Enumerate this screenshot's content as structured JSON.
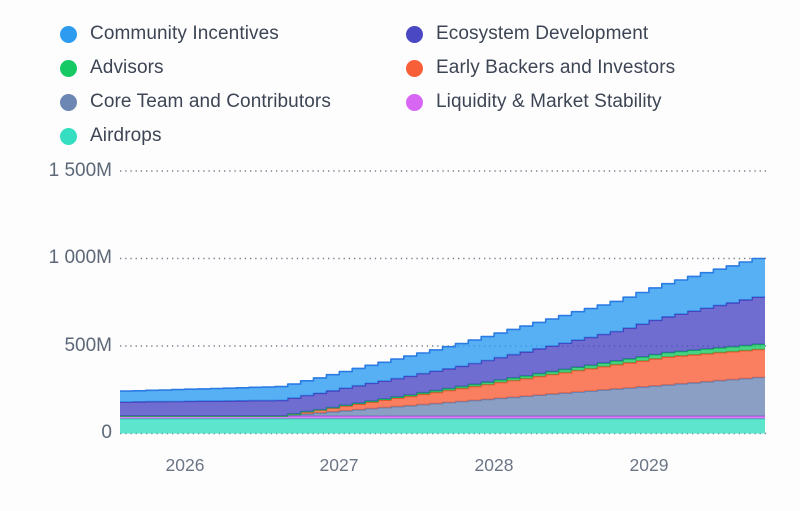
{
  "legend": {
    "items": [
      {
        "label": "Community Incentives",
        "color": "#2D9CF0"
      },
      {
        "label": "Advisors",
        "color": "#17C964"
      },
      {
        "label": "Core Team and Contributors",
        "color": "#6D87B4"
      },
      {
        "label": "Airdrops",
        "color": "#35DEC1"
      },
      {
        "label": "Ecosystem Development",
        "color": "#4B48C4"
      },
      {
        "label": "Early Backers and Investors",
        "color": "#F75F38"
      },
      {
        "label": "Liquidity & Market Stability",
        "color": "#D767F3"
      }
    ]
  },
  "axes": {
    "y_tick_labels": [
      "1 500M",
      "1 000M",
      "500M",
      "0"
    ],
    "x_tick_labels": [
      "2026",
      "2027",
      "2028",
      "2029"
    ]
  },
  "chart_data": {
    "type": "area",
    "stacked": true,
    "stepped": true,
    "title": "",
    "unit": "millions of tokens",
    "ylabel": "",
    "xlabel": "",
    "ylim": [
      0,
      1500
    ],
    "y_tick_values": [
      0,
      500,
      1000,
      1500
    ],
    "y_tick_labels": [
      "0",
      "500M",
      "1 000M",
      "1 500M"
    ],
    "x_tick_labels": [
      "2026",
      "2027",
      "2028",
      "2029"
    ],
    "x_tick_point_index": [
      5,
      17,
      29,
      41
    ],
    "x_start_month": "2025-08",
    "x_months_per_point": 1,
    "points": 50,
    "grid": "dotted-horizontal",
    "legend_position": "top-left-two-columns",
    "series": [
      {
        "name": "Airdrops",
        "color": "#35DEC1",
        "line_color": "#2AC0A9",
        "values": [
          85,
          85,
          85,
          85,
          85,
          85,
          85,
          85,
          85,
          85,
          85,
          85,
          85,
          85,
          85,
          85,
          85,
          85,
          85,
          85,
          85,
          85,
          85,
          85,
          85,
          85,
          85,
          85,
          85,
          85,
          85,
          85,
          85,
          85,
          85,
          85,
          85,
          85,
          85,
          85,
          85,
          85,
          85,
          85,
          85,
          85,
          85,
          85,
          85,
          85
        ]
      },
      {
        "name": "Liquidity & Market Stability",
        "color": "#D767F3",
        "line_color": "#BC53E6",
        "values": [
          15,
          15,
          15,
          15,
          15,
          15,
          15,
          15,
          15,
          15,
          15,
          15,
          15,
          15,
          15,
          15,
          15,
          15,
          15,
          15,
          15,
          15,
          15,
          15,
          15,
          15,
          15,
          15,
          15,
          15,
          15,
          15,
          15,
          15,
          15,
          15,
          15,
          15,
          15,
          15,
          15,
          15,
          15,
          15,
          15,
          15,
          15,
          15,
          15,
          15
        ]
      },
      {
        "name": "Core Team and Contributors",
        "color": "#6D87B4",
        "line_color": "#5F7DB0",
        "values": [
          0,
          0,
          0,
          0,
          0,
          0,
          0,
          0,
          0,
          0,
          0,
          0,
          0,
          6,
          12,
          18,
          24,
          30,
          36,
          42,
          48,
          54,
          59,
          65,
          71,
          77,
          83,
          89,
          95,
          101,
          107,
          113,
          119,
          125,
          131,
          137,
          143,
          149,
          155,
          160,
          166,
          172,
          178,
          184,
          190,
          196,
          202,
          208,
          214,
          220
        ]
      },
      {
        "name": "Early Backers and Investors",
        "color": "#F75F38",
        "line_color": "#EF4A22",
        "values": [
          0,
          0,
          0,
          0,
          0,
          0,
          0,
          0,
          0,
          0,
          0,
          0,
          0,
          5,
          11,
          16,
          21,
          27,
          32,
          37,
          43,
          48,
          53,
          59,
          64,
          69,
          75,
          80,
          85,
          91,
          96,
          101,
          107,
          112,
          117,
          123,
          128,
          133,
          139,
          144,
          149,
          155,
          160,
          160,
          160,
          160,
          160,
          160,
          160,
          160
        ]
      },
      {
        "name": "Advisors",
        "color": "#17C964",
        "line_color": "#0FAD53",
        "values": [
          0,
          0,
          0,
          0,
          0,
          0,
          0,
          0,
          0,
          0,
          0,
          0,
          0,
          1,
          2,
          2,
          3,
          4,
          5,
          6,
          6,
          7,
          8,
          9,
          10,
          11,
          11,
          12,
          13,
          14,
          15,
          15,
          16,
          17,
          18,
          19,
          19,
          20,
          21,
          22,
          23,
          24,
          24,
          25,
          26,
          27,
          28,
          28,
          29,
          30
        ]
      },
      {
        "name": "Ecosystem Development",
        "color": "#4B48C4",
        "line_color": "#4236B6",
        "values": [
          80,
          81,
          82,
          82,
          83,
          84,
          85,
          85,
          86,
          87,
          88,
          88,
          89,
          90,
          92,
          94,
          96,
          98,
          100,
          102,
          103,
          105,
          107,
          109,
          111,
          113,
          115,
          119,
          124,
          128,
          133,
          137,
          142,
          146,
          150,
          155,
          159,
          164,
          168,
          177,
          187,
          196,
          205,
          214,
          224,
          233,
          242,
          251,
          261,
          270
        ]
      },
      {
        "name": "Community Incentives",
        "color": "#2D9CF0",
        "line_color": "#2B7BE4",
        "values": [
          62,
          63,
          65,
          66,
          68,
          69,
          70,
          72,
          73,
          74,
          76,
          77,
          79,
          80,
          84,
          88,
          92,
          95,
          99,
          103,
          107,
          111,
          115,
          118,
          122,
          126,
          130,
          134,
          137,
          140,
          144,
          148,
          151,
          154,
          158,
          162,
          165,
          168,
          172,
          176,
          181,
          185,
          189,
          194,
          198,
          203,
          207,
          211,
          216,
          220
        ]
      }
    ]
  }
}
